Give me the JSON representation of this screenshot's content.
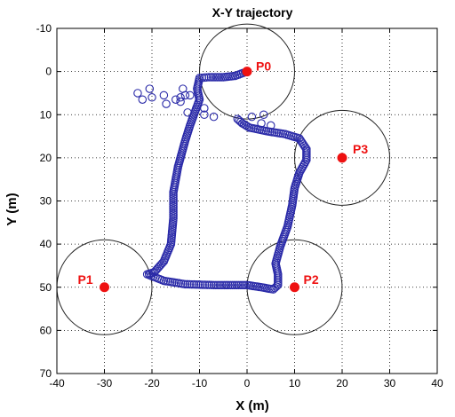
{
  "chart_data": {
    "type": "scatter",
    "title": "X-Y trajectory",
    "xlabel": "X (m)",
    "ylabel": "Y (m)",
    "xlim": [
      -40,
      40
    ],
    "ylim": [
      -10,
      70
    ],
    "y_inverted": true,
    "xticks": [
      -40,
      -30,
      -20,
      -10,
      0,
      10,
      20,
      30,
      40
    ],
    "yticks": [
      -10,
      0,
      10,
      20,
      30,
      40,
      50,
      60,
      70
    ],
    "grid": "dotted",
    "waypoints": [
      {
        "label": "P0",
        "x": 0,
        "y": 0,
        "radius": 10
      },
      {
        "label": "P1",
        "x": -30,
        "y": 50,
        "radius": 10
      },
      {
        "label": "P2",
        "x": 10,
        "y": 50,
        "radius": 10
      },
      {
        "label": "P3",
        "x": 20,
        "y": 20,
        "radius": 10
      }
    ],
    "series": [
      {
        "color": "#2a2aa8",
        "marker": "open-circle",
        "path_vertices": [
          [
            0.0,
            0.0
          ],
          [
            -2.5,
            1.0
          ],
          [
            -5.0,
            1.3
          ],
          [
            -8.0,
            1.3
          ],
          [
            -10.0,
            1.5
          ],
          [
            -10.5,
            4.0
          ],
          [
            -10.0,
            6.5
          ],
          [
            -11.0,
            9.5
          ],
          [
            -12.0,
            12.5
          ],
          [
            -13.0,
            16.0
          ],
          [
            -14.5,
            22.0
          ],
          [
            -15.5,
            28.0
          ],
          [
            -15.5,
            34.0
          ],
          [
            -16.0,
            40.0
          ],
          [
            -17.5,
            44.0
          ],
          [
            -19.5,
            46.5
          ],
          [
            -21.0,
            47.0
          ],
          [
            -17.5,
            48.5
          ],
          [
            -13.0,
            49.3
          ],
          [
            -7.0,
            49.5
          ],
          [
            0.0,
            49.5
          ],
          [
            3.0,
            50.0
          ],
          [
            5.5,
            50.5
          ],
          [
            6.5,
            49.5
          ],
          [
            6.5,
            47.0
          ],
          [
            6.0,
            44.5
          ],
          [
            7.0,
            40.5
          ],
          [
            8.5,
            36.0
          ],
          [
            9.5,
            31.0
          ],
          [
            10.0,
            27.0
          ],
          [
            11.0,
            23.5
          ],
          [
            12.5,
            20.5
          ],
          [
            12.5,
            18.0
          ],
          [
            11.0,
            15.5
          ],
          [
            8.0,
            14.5
          ],
          [
            4.0,
            13.8
          ],
          [
            0.5,
            13.0
          ],
          [
            -1.0,
            12.0
          ],
          [
            -2.0,
            11.0
          ]
        ],
        "extra_points": [
          [
            -23.0,
            5.0
          ],
          [
            -22.0,
            6.5
          ],
          [
            -20.5,
            4.0
          ],
          [
            -20.0,
            6.0
          ],
          [
            -17.5,
            5.5
          ],
          [
            -17.0,
            7.5
          ],
          [
            -15.0,
            6.5
          ],
          [
            -14.0,
            6.0
          ],
          [
            -13.0,
            5.5
          ],
          [
            -12.0,
            5.5
          ],
          [
            -13.5,
            4.0
          ],
          [
            -12.5,
            9.5
          ],
          [
            -14.0,
            7.0
          ],
          [
            -9.0,
            10.0
          ],
          [
            -7.0,
            10.5
          ],
          [
            1.0,
            10.5
          ],
          [
            3.5,
            10.0
          ],
          [
            3.0,
            12.0
          ],
          [
            5.0,
            12.5
          ],
          [
            -9.0,
            8.5
          ]
        ]
      }
    ]
  }
}
